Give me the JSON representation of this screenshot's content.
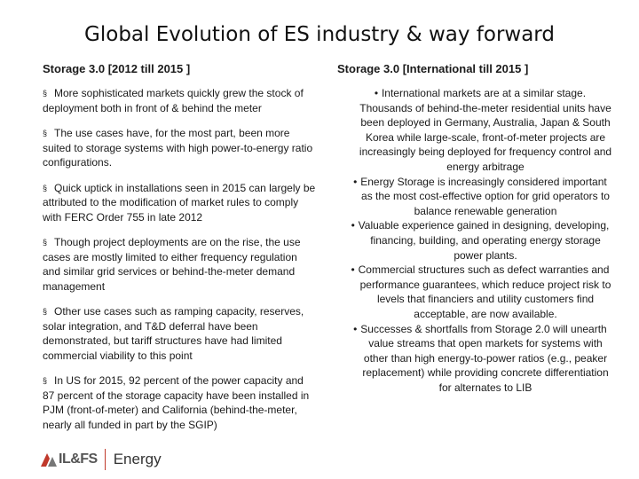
{
  "title": "Global Evolution of ES industry & way forward",
  "left": {
    "heading": "Storage 3.0 [2012 till 2015 ]",
    "bullet": "§",
    "items": [
      "More sophisticated markets quickly grew the stock of deployment both in front of & behind the meter",
      "The use cases have, for the most part, been more suited to storage systems with high power-to-energy ratio configurations.",
      "Quick uptick in installations seen in 2015 can largely be attributed to the modification of market rules to comply with FERC Order 755 in late 2012",
      "Though project deployments are on the rise, the use cases are mostly limited to either frequency regulation and similar grid services or behind-the-meter demand management",
      "Other use cases such as ramping capacity, reserves, solar integration, and T&D deferral have been demonstrated, but tariff structures have had limited commercial viability to this point",
      "In US for 2015, 92 percent of the power capacity and 87 percent of the storage capacity have been installed in PJM (front-of-meter) and California (behind-the-meter, nearly all funded in part by the SGIP)"
    ]
  },
  "right": {
    "heading": "Storage 3.0 [International till 2015 ]",
    "bullet": "•",
    "items": [
      "International markets are at a similar stage. Thousands of behind-the-meter residential units have been deployed in Germany, Australia, Japan & South Korea while large-scale, front-of-meter projects are increasingly being deployed for frequency control and energy arbitrage",
      "Energy Storage is increasingly considered important as the most cost-effective option for grid operators to balance renewable generation",
      "Valuable experience gained in designing, developing, financing, building, and operating energy storage power plants.",
      "Commercial structures such as defect warranties and performance guarantees, which reduce project risk to levels that financiers and utility customers find acceptable, are now available.",
      "Successes & shortfalls from Storage 2.0 will unearth value streams that open markets for systems with other than high energy-to-power ratios (e.g., peaker replacement) while providing concrete differentiation for alternates to LIB"
    ]
  },
  "footer": {
    "logo_text": "IL&FS",
    "logo_suffix": "Energy"
  },
  "colors": {
    "logo_red": "#c0392b",
    "logo_gray": "#555555"
  }
}
